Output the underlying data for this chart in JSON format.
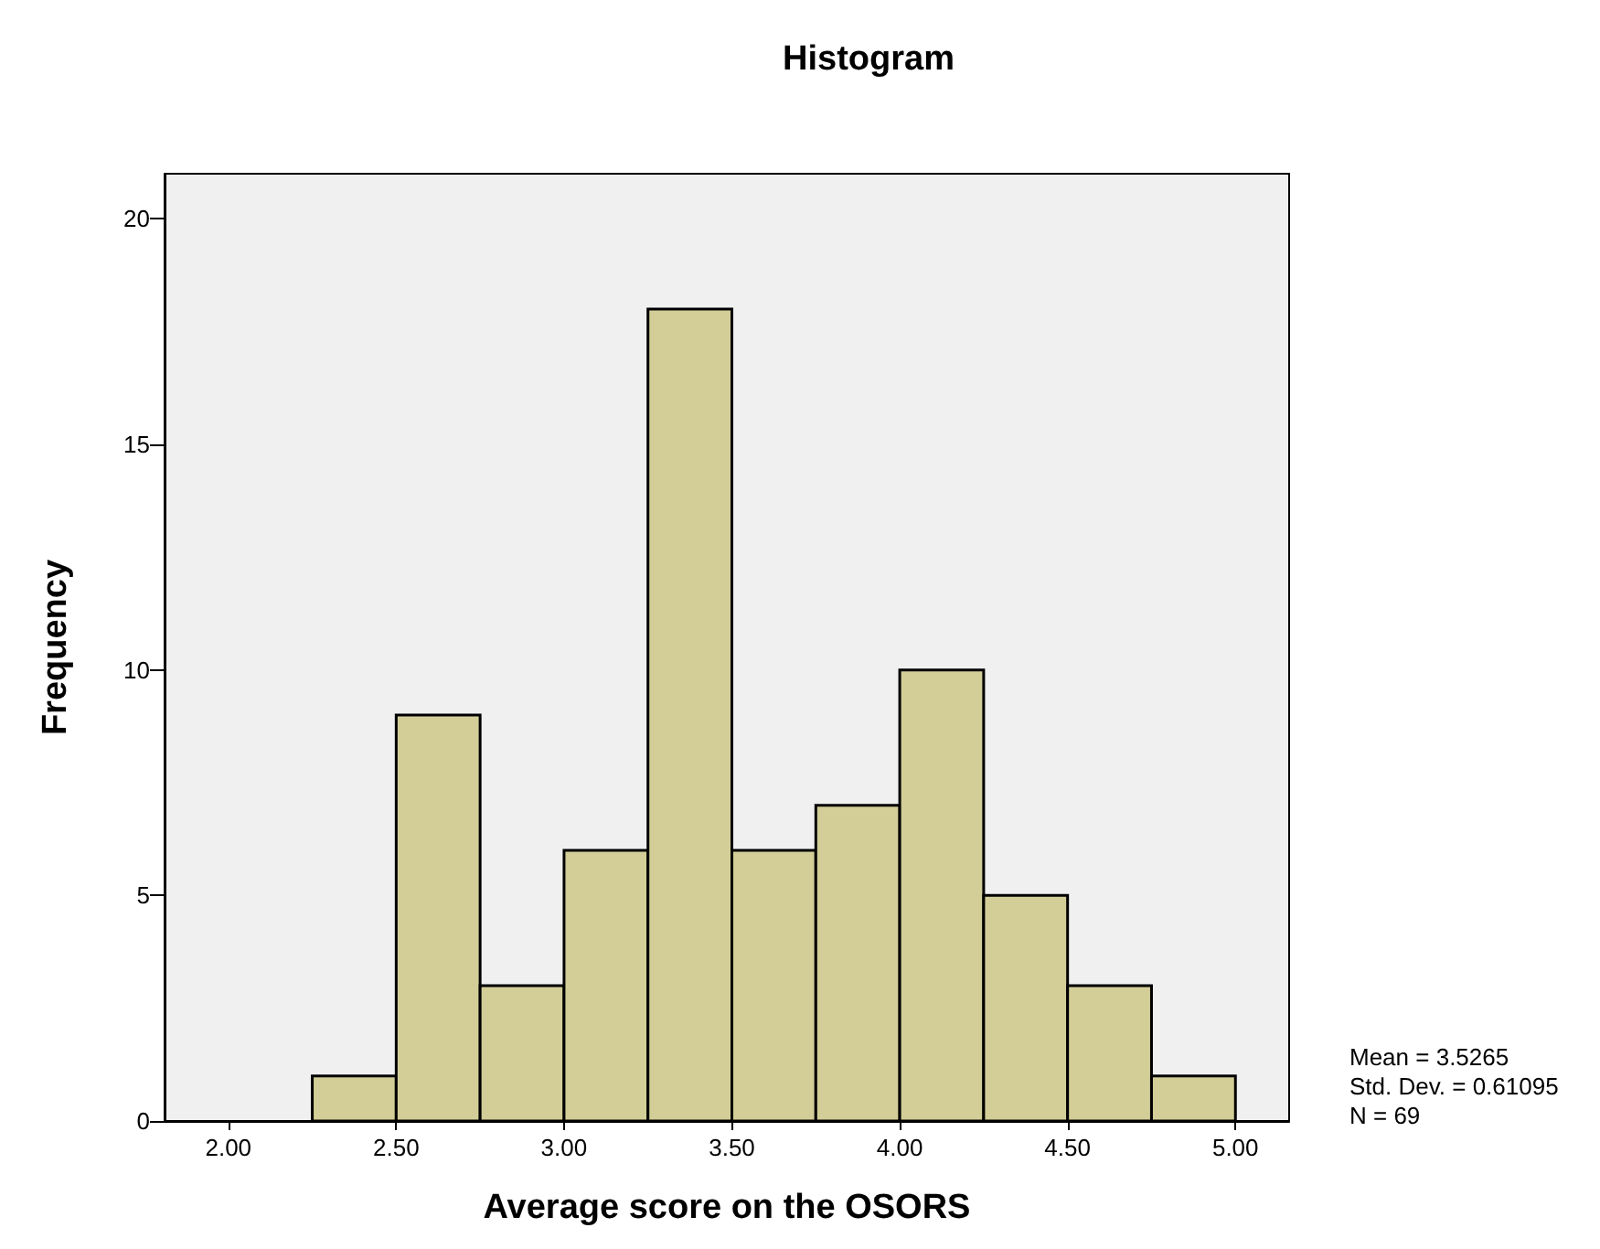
{
  "chart_data": {
    "type": "histogram",
    "title": "Histogram",
    "xlabel": "Average score on the OSORS",
    "ylabel": "Frequency",
    "bins": [
      2.25,
      2.5,
      2.75,
      3.0,
      3.25,
      3.5,
      3.75,
      4.0,
      4.25,
      4.5,
      4.75,
      5.0
    ],
    "values": [
      1,
      9,
      3,
      6,
      18,
      6,
      7,
      10,
      5,
      3,
      1
    ],
    "color": "#d3ce97",
    "xlim": [
      1.81,
      5.16
    ],
    "xticks": [
      {
        "value": 2,
        "label": "2.00"
      },
      {
        "value": 2.5,
        "label": "2.50"
      },
      {
        "value": 3,
        "label": "3.00"
      },
      {
        "value": 3.5,
        "label": "3.50"
      },
      {
        "value": 4,
        "label": "4.00"
      },
      {
        "value": 4.5,
        "label": "4.50"
      },
      {
        "value": 5,
        "label": "5.00"
      }
    ],
    "ylim": [
      0,
      21
    ],
    "yticks": [
      0,
      5,
      10,
      15,
      20
    ],
    "grid": false,
    "annotations": [
      "Mean = 3.5265",
      "Std. Dev. = 0.61095",
      "N = 69"
    ]
  }
}
